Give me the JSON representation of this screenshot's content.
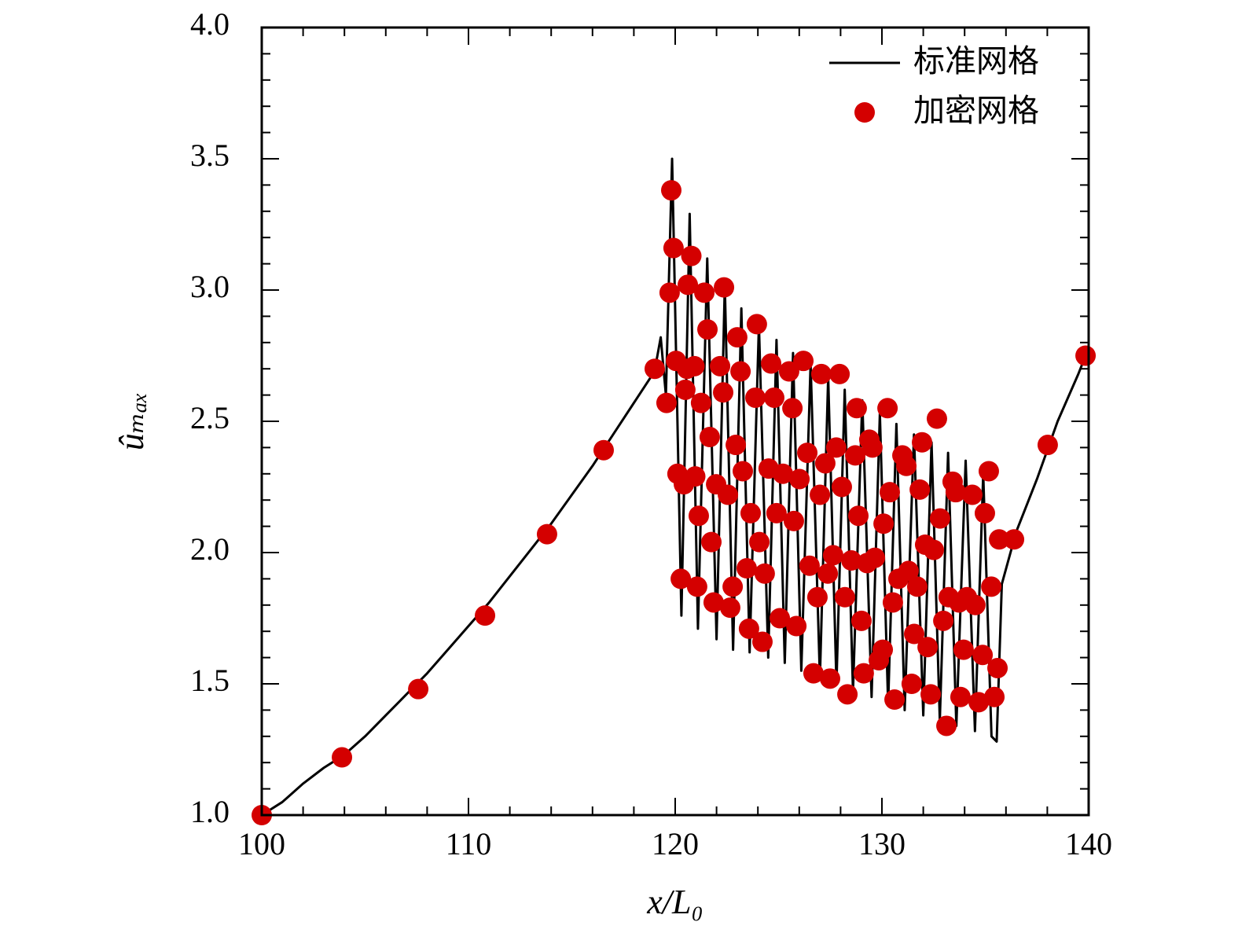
{
  "chart_data": {
    "type": "line",
    "x_label": "x/L₀",
    "y_label": "ûₘₐₓ",
    "xlim": [
      100,
      140
    ],
    "ylim": [
      1.0,
      4.0
    ],
    "xticks": [
      100,
      110,
      120,
      130,
      140
    ],
    "yticks": [
      {
        "value": 1.0,
        "label": "1.0"
      },
      {
        "value": 1.5,
        "label": "1.5"
      },
      {
        "value": 2.0,
        "label": "2.0"
      },
      {
        "value": 2.5,
        "label": "2.5"
      },
      {
        "value": 3.0,
        "label": "3.0"
      },
      {
        "value": 3.5,
        "label": "3.5"
      },
      {
        "value": 4.0,
        "label": "4.0"
      }
    ],
    "minor_ticks_per_interval": 5,
    "legend": "upper right",
    "series": [
      {
        "name": "标准网格",
        "type": "line",
        "color": "#000000",
        "x": [
          100,
          101,
          102,
          103,
          104,
          105,
          106,
          107,
          108,
          109,
          110,
          111,
          112,
          113,
          114,
          115,
          116,
          117,
          118,
          119,
          119.3,
          119.55,
          119.85,
          120.3,
          120.7,
          121.1,
          121.55,
          122.0,
          122.4,
          122.8,
          123.2,
          123.6,
          124.05,
          124.5,
          124.9,
          125.3,
          125.7,
          126.1,
          126.55,
          127.0,
          127.4,
          127.8,
          128.2,
          128.6,
          129.05,
          129.5,
          129.9,
          130.3,
          130.7,
          131.1,
          131.55,
          132.0,
          132.4,
          132.8,
          133.2,
          133.6,
          134.05,
          134.5,
          134.9,
          135.3,
          135.55,
          135.8,
          136.5,
          137.5,
          138.5,
          139.5,
          140
        ],
        "values": [
          1.0,
          1.05,
          1.12,
          1.18,
          1.23,
          1.3,
          1.38,
          1.46,
          1.54,
          1.63,
          1.72,
          1.81,
          1.91,
          2.01,
          2.11,
          2.22,
          2.33,
          2.45,
          2.57,
          2.69,
          2.82,
          2.6,
          3.5,
          1.76,
          3.29,
          1.71,
          3.12,
          1.67,
          3.02,
          1.63,
          2.93,
          1.62,
          2.87,
          1.6,
          2.81,
          1.58,
          2.76,
          1.55,
          2.72,
          1.52,
          2.67,
          1.5,
          2.62,
          1.47,
          2.58,
          1.45,
          2.53,
          1.42,
          2.49,
          1.4,
          2.45,
          1.38,
          2.42,
          1.36,
          2.38,
          1.34,
          2.35,
          1.32,
          2.3,
          1.3,
          1.28,
          1.88,
          2.08,
          2.28,
          2.5,
          2.68,
          2.78
        ]
      },
      {
        "name": "加密网格",
        "type": "scatter",
        "color": "#d40000",
        "x": [
          100,
          103.88,
          107.57,
          110.8,
          113.8,
          116.54,
          119.01,
          119.58,
          119.81,
          119.92,
          119.73,
          120.04,
          120.11,
          120.27,
          120.42,
          120.49,
          120.57,
          120.61,
          120.78,
          120.93,
          120.97,
          121.06,
          121.14,
          121.25,
          121.41,
          121.56,
          121.67,
          121.75,
          121.86,
          121.98,
          122.17,
          122.32,
          122.36,
          122.55,
          122.66,
          122.78,
          122.93,
          123.0,
          123.16,
          123.27,
          123.46,
          123.57,
          123.65,
          123.88,
          123.95,
          124.07,
          124.22,
          124.33,
          124.52,
          124.64,
          124.79,
          124.9,
          125.06,
          125.21,
          125.51,
          125.67,
          125.74,
          125.86,
          126.01,
          126.2,
          126.39,
          126.5,
          126.69,
          126.88,
          127.0,
          127.07,
          127.26,
          127.38,
          127.49,
          127.64,
          127.79,
          127.95,
          128.06,
          128.21,
          128.33,
          128.52,
          128.71,
          128.78,
          128.86,
          129.01,
          129.12,
          129.28,
          129.39,
          129.54,
          129.66,
          129.85,
          130.04,
          130.08,
          130.27,
          130.38,
          130.53,
          130.61,
          130.8,
          130.99,
          131.18,
          131.29,
          131.44,
          131.56,
          131.71,
          131.83,
          131.94,
          132.09,
          132.21,
          132.36,
          132.51,
          132.66,
          132.81,
          132.97,
          133.12,
          133.23,
          133.42,
          133.57,
          133.73,
          133.8,
          133.95,
          134.11,
          134.37,
          134.52,
          134.68,
          134.87,
          134.98,
          135.17,
          135.29,
          135.44,
          135.59,
          135.67,
          136.39,
          138.02,
          139.85
        ],
        "values": [
          1.0,
          1.22,
          1.48,
          1.76,
          2.07,
          2.39,
          2.7,
          2.57,
          3.38,
          3.16,
          2.99,
          2.73,
          2.3,
          1.9,
          2.26,
          2.62,
          2.7,
          3.02,
          3.13,
          2.71,
          2.29,
          1.87,
          2.14,
          2.57,
          2.99,
          2.85,
          2.44,
          2.04,
          1.81,
          2.26,
          2.71,
          2.61,
          3.01,
          2.22,
          1.79,
          1.87,
          2.41,
          2.82,
          2.69,
          2.31,
          1.94,
          1.71,
          2.15,
          2.59,
          2.87,
          2.04,
          1.66,
          1.92,
          2.32,
          2.72,
          2.59,
          2.15,
          1.75,
          2.3,
          2.69,
          2.55,
          2.12,
          1.72,
          2.28,
          2.73,
          2.38,
          1.95,
          1.54,
          1.83,
          2.22,
          2.68,
          2.34,
          1.92,
          1.52,
          1.99,
          2.4,
          2.68,
          2.25,
          1.83,
          1.46,
          1.97,
          2.37,
          2.55,
          2.14,
          1.74,
          1.54,
          1.96,
          2.43,
          2.4,
          1.98,
          1.59,
          1.63,
          2.11,
          2.55,
          2.23,
          1.81,
          1.44,
          1.9,
          2.37,
          2.33,
          1.93,
          1.5,
          1.69,
          1.87,
          2.24,
          2.42,
          2.03,
          1.64,
          1.46,
          2.01,
          2.51,
          2.13,
          1.74,
          1.34,
          1.83,
          2.27,
          2.23,
          1.81,
          1.45,
          1.63,
          1.83,
          2.22,
          1.8,
          1.43,
          1.61,
          2.15,
          2.31,
          1.87,
          1.45,
          1.56,
          2.05,
          2.05,
          2.41,
          2.75
        ]
      }
    ]
  }
}
